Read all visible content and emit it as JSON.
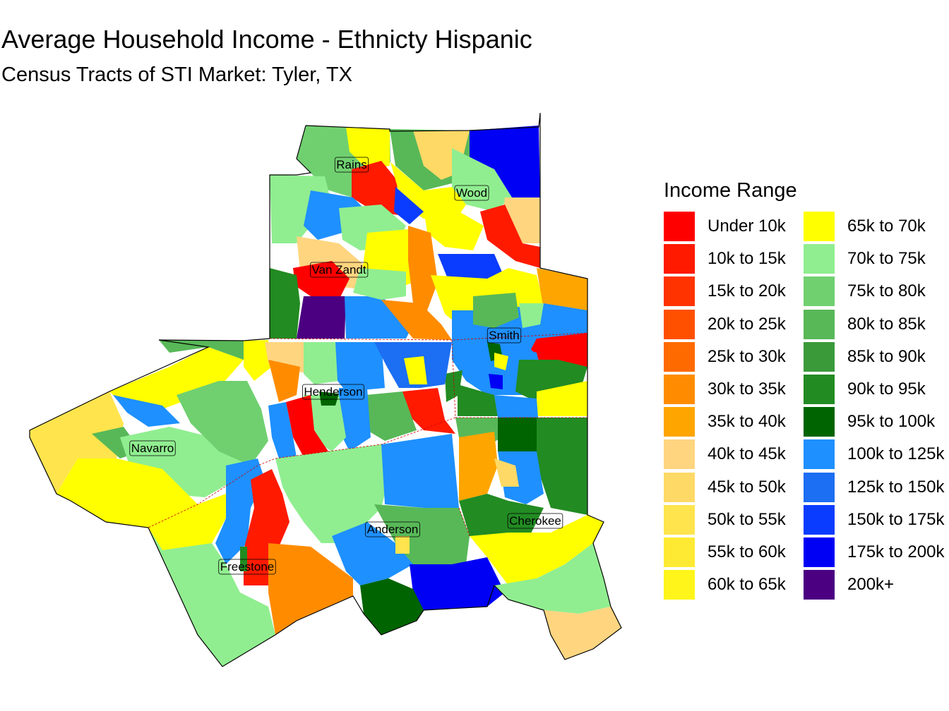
{
  "title": "Average Household Income - Ethnicty Hispanic",
  "subtitle": "Census Tracts of STI Market: Tyler, TX",
  "legend": {
    "title": "Income Range",
    "items": [
      {
        "label": "Under 10k",
        "color": "#FF0000"
      },
      {
        "label": "10k to 15k",
        "color": "#FF1A00"
      },
      {
        "label": "15k to 20k",
        "color": "#FF3300"
      },
      {
        "label": "20k to 25k",
        "color": "#FF5000"
      },
      {
        "label": "25k to 30k",
        "color": "#FF6A00"
      },
      {
        "label": "30k to 35k",
        "color": "#FF8C00"
      },
      {
        "label": "35k to 40k",
        "color": "#FFA500"
      },
      {
        "label": "40k to 45k",
        "color": "#FFD580"
      },
      {
        "label": "45k to 50k",
        "color": "#FFD966"
      },
      {
        "label": "50k to 55k",
        "color": "#FFE44D"
      },
      {
        "label": "55k to 60k",
        "color": "#FFEA33"
      },
      {
        "label": "60k to 65k",
        "color": "#FFF51A"
      },
      {
        "label": "65k to 70k",
        "color": "#FFFF00"
      },
      {
        "label": "70k to 75k",
        "color": "#90EE90"
      },
      {
        "label": "75k to 80k",
        "color": "#70D070"
      },
      {
        "label": "80k to 85k",
        "color": "#58B858"
      },
      {
        "label": "85k to 90k",
        "color": "#3A9A3A"
      },
      {
        "label": "90k to 95k",
        "color": "#228B22"
      },
      {
        "label": "95k to 100k",
        "color": "#006400"
      },
      {
        "label": "100k to 125k",
        "color": "#1E90FF"
      },
      {
        "label": "125k to 150k",
        "color": "#1C6EF2"
      },
      {
        "label": "150k to 175k",
        "color": "#0A3CFF"
      },
      {
        "label": "175k to 200k",
        "color": "#0000F5"
      },
      {
        "label": "200k+",
        "color": "#4B0082"
      }
    ]
  },
  "counties": [
    {
      "name": "Rains"
    },
    {
      "name": "Wood"
    },
    {
      "name": "Van Zandt"
    },
    {
      "name": "Smith"
    },
    {
      "name": "Henderson"
    },
    {
      "name": "Navarro"
    },
    {
      "name": "Anderson"
    },
    {
      "name": "Cherokee"
    },
    {
      "name": "Freestone"
    }
  ]
}
